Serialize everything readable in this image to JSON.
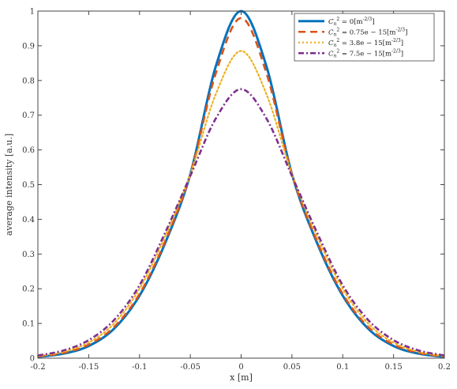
{
  "chart_data": {
    "type": "line",
    "title": "",
    "xlabel": "x [m]",
    "ylabel": "average intensity [a.u.]",
    "xlim": [
      -0.2,
      0.2
    ],
    "ylim": [
      0,
      1
    ],
    "grid": false,
    "legend_position": "top-right",
    "xticks": [
      -0.2,
      -0.15,
      -0.1,
      -0.05,
      0,
      0.05,
      0.1,
      0.15,
      0.2
    ],
    "xtick_labels": [
      "-0.2",
      "-0.15",
      "-0.1",
      "-0.05",
      "0",
      "0.05",
      "0.1",
      "0.15",
      "0.2"
    ],
    "yticks": [
      0,
      0.1,
      0.2,
      0.3,
      0.4,
      0.5,
      0.6,
      0.7,
      0.8,
      0.9,
      1
    ],
    "ytick_labels": [
      "0",
      "0.1",
      "0.2",
      "0.3",
      "0.4",
      "0.5",
      "0.6",
      "0.7",
      "0.8",
      "0.9",
      "1"
    ],
    "x": [
      -0.2,
      -0.175,
      -0.15,
      -0.125,
      -0.1,
      -0.075,
      -0.05,
      -0.025,
      0,
      0.025,
      0.05,
      0.075,
      0.1,
      0.125,
      0.15,
      0.175,
      0.2
    ],
    "series": [
      {
        "name": "C_n^2 = 0[m^{-2/3}]",
        "color": "#0072BD",
        "dash": "solid",
        "values": [
          0.004,
          0.013,
          0.035,
          0.085,
          0.18,
          0.33,
          0.53,
          0.84,
          1.0,
          0.84,
          0.53,
          0.33,
          0.18,
          0.085,
          0.035,
          0.013,
          0.004
        ]
      },
      {
        "name": "C_n^2 = 0.75e-15[m^{-2/3}]",
        "color": "#D95319",
        "dash": "dashed",
        "values": [
          0.005,
          0.015,
          0.039,
          0.09,
          0.185,
          0.335,
          0.53,
          0.82,
          0.98,
          0.82,
          0.53,
          0.335,
          0.185,
          0.09,
          0.039,
          0.015,
          0.005
        ]
      },
      {
        "name": "C_n^2 = 3.8e-15[m^{-2/3}]",
        "color": "#EDB120",
        "dash": "dotted",
        "values": [
          0.006,
          0.018,
          0.045,
          0.1,
          0.2,
          0.35,
          0.53,
          0.76,
          0.885,
          0.76,
          0.53,
          0.35,
          0.2,
          0.1,
          0.045,
          0.018,
          0.006
        ]
      },
      {
        "name": "C_n^2 = 7.5e-15[m^{-2/3}]",
        "color": "#7E2F8E",
        "dash": "dashdot",
        "values": [
          0.008,
          0.022,
          0.052,
          0.11,
          0.21,
          0.36,
          0.525,
          0.69,
          0.775,
          0.69,
          0.525,
          0.36,
          0.21,
          0.11,
          0.052,
          0.022,
          0.008
        ]
      }
    ],
    "legend_labels": [
      {
        "prefix": "C",
        "sub": "n",
        "sup": "2",
        "eq": " = 0[m",
        "unit_sup": "-2/3",
        "end": "]"
      },
      {
        "prefix": "C",
        "sub": "n",
        "sup": "2",
        "eq": " = 0.75e − 15[m",
        "unit_sup": "-2/3",
        "end": "]"
      },
      {
        "prefix": "C",
        "sub": "n",
        "sup": "2",
        "eq": " = 3.8e − 15[m",
        "unit_sup": "-2/3",
        "end": "]"
      },
      {
        "prefix": "C",
        "sub": "n",
        "sup": "2",
        "eq": " = 7.5e − 15[m",
        "unit_sup": "-2/3",
        "end": "]"
      }
    ]
  }
}
